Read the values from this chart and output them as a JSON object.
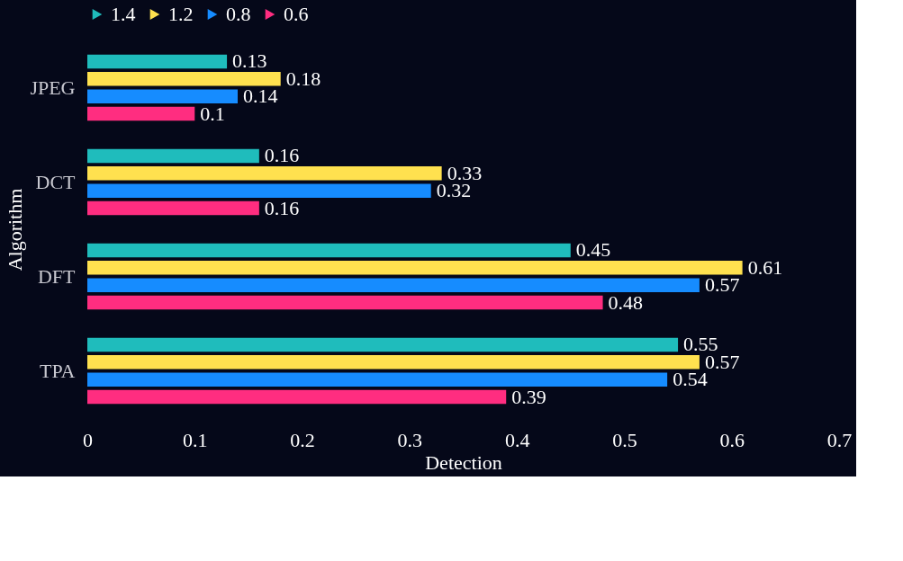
{
  "chart_data": {
    "type": "bar",
    "orientation": "horizontal",
    "xlabel": "Detection",
    "ylabel": "Algorithm",
    "categories": [
      "JPEG",
      "DCT",
      "DFT",
      "TPA"
    ],
    "series": [
      {
        "name": "1.4",
        "color": "#1fbcbc",
        "values": [
          0.13,
          0.16,
          0.45,
          0.55
        ]
      },
      {
        "name": "1.2",
        "color": "#ffe14f",
        "values": [
          0.18,
          0.33,
          0.61,
          0.57
        ]
      },
      {
        "name": "0.8",
        "color": "#168cff",
        "values": [
          0.14,
          0.32,
          0.57,
          0.54
        ]
      },
      {
        "name": "0.6",
        "color": "#ff2d80",
        "values": [
          0.1,
          0.16,
          0.48,
          0.39
        ]
      }
    ],
    "xlim": [
      0,
      0.7
    ],
    "xticks": [
      0,
      0.1,
      0.2,
      0.3,
      0.4,
      0.5,
      0.6,
      0.7
    ],
    "grid": false,
    "legend": "top",
    "data_labels": true
  }
}
